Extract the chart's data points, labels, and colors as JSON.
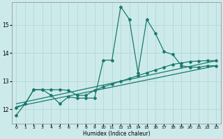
{
  "xlabel": "Humidex (Indice chaleur)",
  "bg_color": "#cdeaea",
  "line_color": "#1a7a6e",
  "grid_color": "#aed4d4",
  "x_ticks": [
    0,
    1,
    2,
    3,
    4,
    5,
    6,
    7,
    8,
    9,
    10,
    11,
    12,
    13,
    14,
    15,
    16,
    17,
    18,
    19,
    20,
    21,
    22,
    23
  ],
  "ylim": [
    11.5,
    15.8
  ],
  "yticks": [
    12,
    13,
    14,
    15
  ],
  "series1_x": [
    0,
    1,
    2,
    3,
    4,
    5,
    6,
    7,
    8,
    9,
    10,
    11,
    12,
    13,
    14,
    15,
    16,
    17,
    18,
    19,
    20,
    21,
    22,
    23
  ],
  "series1_y": [
    11.8,
    12.2,
    12.7,
    12.7,
    12.5,
    12.2,
    12.45,
    12.4,
    12.4,
    12.4,
    13.75,
    13.75,
    15.65,
    15.2,
    13.3,
    15.2,
    14.7,
    14.05,
    13.95,
    13.55,
    13.5,
    13.5,
    13.55,
    13.55
  ],
  "series2_x": [
    0,
    1,
    2,
    3,
    4,
    5,
    6,
    7,
    8,
    9,
    10,
    11,
    12,
    13,
    14,
    15,
    16,
    17,
    18,
    19,
    20,
    21,
    22,
    23
  ],
  "series2_y": [
    12.05,
    12.2,
    12.7,
    12.7,
    12.7,
    12.7,
    12.68,
    12.5,
    12.5,
    12.68,
    12.8,
    12.9,
    13.0,
    13.1,
    13.2,
    13.3,
    13.4,
    13.5,
    13.6,
    13.65,
    13.7,
    13.72,
    13.73,
    13.73
  ],
  "series3_x": [
    0,
    23
  ],
  "series3_y": [
    12.1,
    13.55
  ],
  "series4_x": [
    0,
    23
  ],
  "series4_y": [
    12.2,
    13.73
  ]
}
